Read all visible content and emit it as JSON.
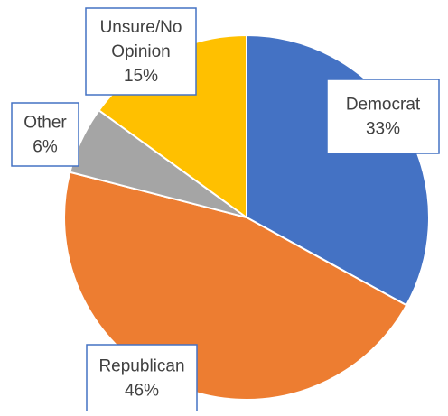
{
  "chart_data": {
    "type": "pie",
    "title": "",
    "start_angle_deg": 0,
    "direction": "clockwise",
    "slices": [
      {
        "label": "Democrat",
        "value": 33,
        "display": "33%",
        "color": "#4472C4"
      },
      {
        "label": "Republican",
        "value": 46,
        "display": "46%",
        "color": "#ED7D31"
      },
      {
        "label": "Other",
        "value": 6,
        "display": "6%",
        "color": "#A5A5A5"
      },
      {
        "label": "Unsure/No Opinion",
        "value": 15,
        "display": "15%",
        "color": "#FFC000"
      }
    ],
    "label_border_color": "#4472C4",
    "slice_border_color": "#FFFFFF",
    "legend": "none",
    "data_labels": "category-name and percentage, boxed"
  }
}
